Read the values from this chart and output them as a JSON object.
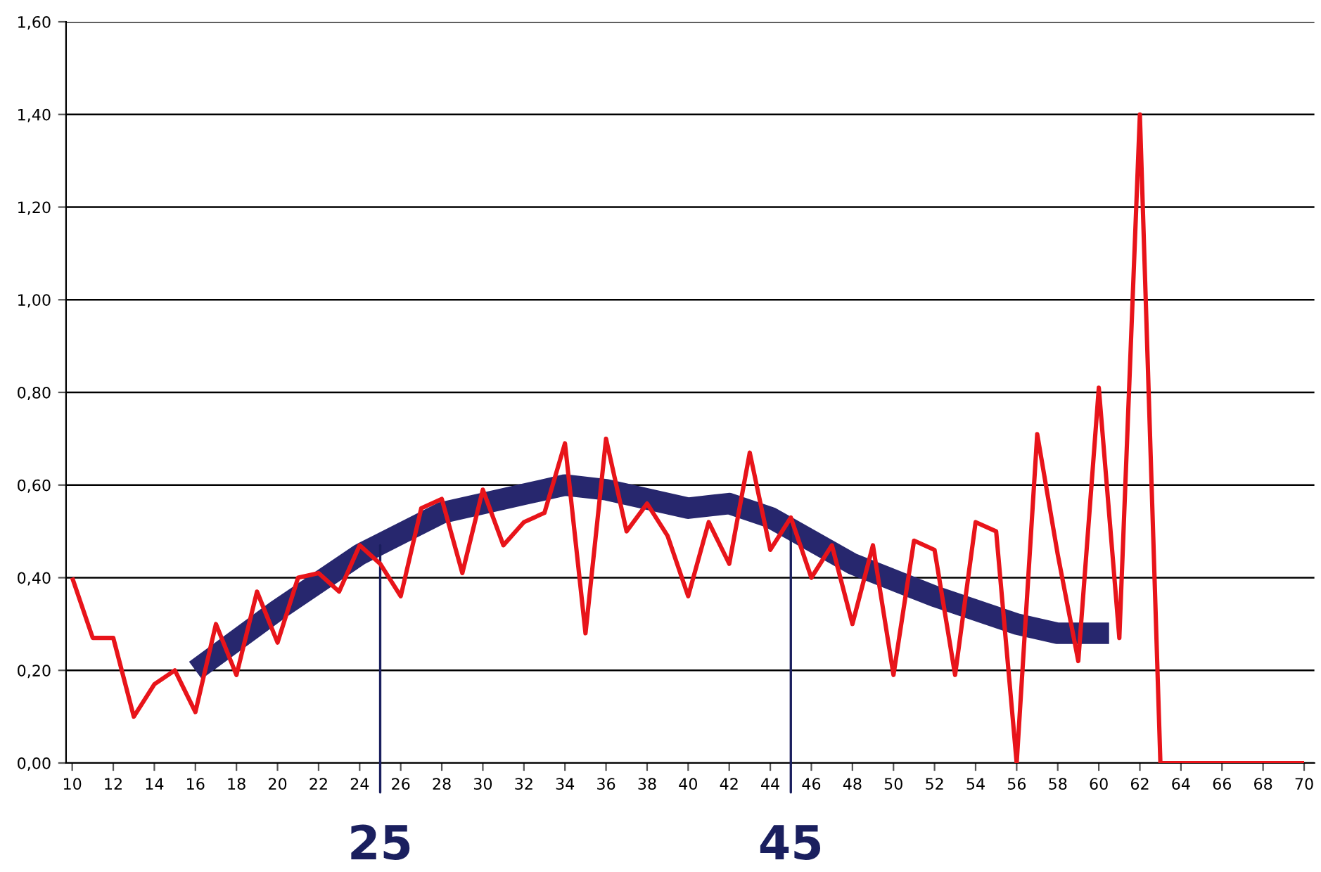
{
  "chart_data": {
    "type": "line",
    "xlim": [
      9.7,
      70.5
    ],
    "xticks": [
      10,
      12,
      14,
      16,
      18,
      20,
      22,
      24,
      26,
      28,
      30,
      32,
      34,
      36,
      38,
      40,
      42,
      44,
      46,
      48,
      50,
      52,
      54,
      56,
      58,
      60,
      62,
      64,
      66,
      68,
      70
    ],
    "ylim": [
      0,
      1.6
    ],
    "yticks": [
      {
        "value": 0,
        "label": "0,00"
      },
      {
        "value": 0.2,
        "label": "0,20"
      },
      {
        "value": 0.4,
        "label": "0,40"
      },
      {
        "value": 0.6,
        "label": "0,60"
      },
      {
        "value": 0.8,
        "label": "0,80"
      },
      {
        "value": 1.0,
        "label": "1,00"
      },
      {
        "value": 1.2,
        "label": "1,20"
      },
      {
        "value": 1.4,
        "label": "1,40"
      },
      {
        "value": 1.6,
        "label": "1,60"
      }
    ],
    "grid": "y",
    "marker": "none",
    "line_style": "solid",
    "series": [
      {
        "color": "#e8141a",
        "x": [
          10,
          11,
          12,
          13,
          14,
          15,
          16,
          17,
          18,
          19,
          20,
          21,
          22,
          23,
          24,
          25,
          26,
          27,
          28,
          29,
          30,
          31,
          32,
          33,
          34,
          35,
          36,
          37,
          38,
          39,
          40,
          41,
          42,
          43,
          44,
          45,
          46,
          47,
          48,
          49,
          50,
          51,
          52,
          53,
          54,
          55,
          56,
          57,
          58,
          59,
          60,
          61,
          62,
          63,
          64,
          65,
          66,
          67,
          68,
          69,
          70
        ],
        "values": [
          0.4,
          0.27,
          0.27,
          0.1,
          0.17,
          0.2,
          0.11,
          0.3,
          0.19,
          0.37,
          0.26,
          0.4,
          0.41,
          0.37,
          0.47,
          0.43,
          0.36,
          0.55,
          0.57,
          0.41,
          0.59,
          0.47,
          0.52,
          0.54,
          0.69,
          0.28,
          0.7,
          0.5,
          0.56,
          0.49,
          0.36,
          0.52,
          0.43,
          0.67,
          0.46,
          0.53,
          0.4,
          0.47,
          0.3,
          0.47,
          0.19,
          0.48,
          0.46,
          0.19,
          0.52,
          0.5,
          0.0,
          0.71,
          0.45,
          0.22,
          0.81,
          0.27,
          1.4,
          0.0,
          0.0,
          0.0,
          0.0,
          0.0,
          0.0,
          0.0,
          0.0
        ]
      },
      {
        "color": "#27276e",
        "type": "line",
        "x": [
          16,
          20,
          24,
          28,
          32,
          34,
          36,
          40,
          42,
          44,
          48,
          52,
          56,
          58,
          60.5
        ],
        "values": [
          0.2,
          0.33,
          0.45,
          0.54,
          0.58,
          0.6,
          0.59,
          0.55,
          0.56,
          0.53,
          0.43,
          0.36,
          0.3,
          0.28,
          0.28
        ]
      }
    ],
    "annotations": [
      {
        "text": "25",
        "x": 25,
        "y": 0.47
      },
      {
        "text": "45",
        "x": 45,
        "y": 0.52
      }
    ]
  }
}
